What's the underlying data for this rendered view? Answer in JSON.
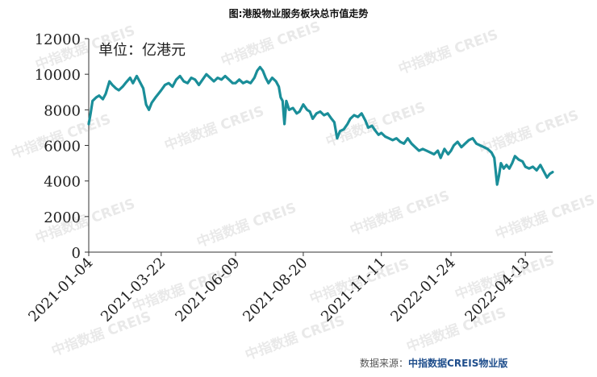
{
  "title": "图:港股物业服务板块总市值走势",
  "unit_label": "单位：亿港元",
  "watermark_text": "中指数据 CREIS",
  "source": {
    "label": "数据来源：",
    "brand": "中指数据CREIS物业版"
  },
  "colors": {
    "line": "#1a8e99",
    "axis": "#333333",
    "watermark": "#e9e9e9"
  },
  "chart_data": {
    "type": "line",
    "title": "图:港股物业服务板块总市值走势",
    "ylabel": "单位：亿港元",
    "xlabel": "",
    "ylim": [
      0,
      12000
    ],
    "yticks": [
      0,
      2000,
      4000,
      6000,
      8000,
      10000,
      12000
    ],
    "xlim": [
      "2021-01-04",
      "2022-05-12"
    ],
    "xticks": [
      "2021-01-04",
      "2021-03-22",
      "2021-06-09",
      "2021-08-20",
      "2021-11-11",
      "2022-01-24",
      "2022-04-13"
    ],
    "grid": false,
    "series": [
      {
        "points": [
          [
            "2021-01-04",
            7200
          ],
          [
            "2021-01-06",
            7800
          ],
          [
            "2021-01-08",
            8500
          ],
          [
            "2021-01-12",
            8700
          ],
          [
            "2021-01-15",
            8800
          ],
          [
            "2021-01-19",
            8600
          ],
          [
            "2021-01-22",
            8900
          ],
          [
            "2021-01-26",
            9600
          ],
          [
            "2021-01-29",
            9400
          ],
          [
            "2021-02-02",
            9200
          ],
          [
            "2021-02-05",
            9100
          ],
          [
            "2021-02-09",
            9300
          ],
          [
            "2021-02-12",
            9500
          ],
          [
            "2021-02-17",
            9800
          ],
          [
            "2021-02-20",
            9500
          ],
          [
            "2021-02-24",
            9900
          ],
          [
            "2021-02-27",
            9600
          ],
          [
            "2021-03-03",
            9200
          ],
          [
            "2021-03-06",
            8300
          ],
          [
            "2021-03-09",
            8000
          ],
          [
            "2021-03-12",
            8400
          ],
          [
            "2021-03-16",
            8700
          ],
          [
            "2021-03-19",
            8900
          ],
          [
            "2021-03-22",
            9100
          ],
          [
            "2021-03-26",
            9400
          ],
          [
            "2021-03-30",
            9500
          ],
          [
            "2021-04-03",
            9300
          ],
          [
            "2021-04-07",
            9700
          ],
          [
            "2021-04-11",
            9900
          ],
          [
            "2021-04-15",
            9600
          ],
          [
            "2021-04-19",
            9500
          ],
          [
            "2021-04-23",
            9800
          ],
          [
            "2021-04-27",
            9700
          ],
          [
            "2021-05-01",
            9400
          ],
          [
            "2021-05-05",
            9700
          ],
          [
            "2021-05-09",
            10000
          ],
          [
            "2021-05-13",
            9800
          ],
          [
            "2021-05-17",
            9600
          ],
          [
            "2021-05-21",
            9800
          ],
          [
            "2021-05-25",
            9700
          ],
          [
            "2021-05-29",
            9900
          ],
          [
            "2021-06-02",
            9700
          ],
          [
            "2021-06-06",
            9500
          ],
          [
            "2021-06-09",
            9500
          ],
          [
            "2021-06-13",
            9700
          ],
          [
            "2021-06-17",
            9500
          ],
          [
            "2021-06-21",
            9600
          ],
          [
            "2021-06-25",
            9500
          ],
          [
            "2021-06-29",
            9800
          ],
          [
            "2021-07-02",
            10200
          ],
          [
            "2021-07-05",
            10400
          ],
          [
            "2021-07-08",
            10200
          ],
          [
            "2021-07-11",
            9800
          ],
          [
            "2021-07-14",
            9500
          ],
          [
            "2021-07-18",
            9800
          ],
          [
            "2021-07-22",
            9600
          ],
          [
            "2021-07-25",
            9300
          ],
          [
            "2021-07-27",
            8700
          ],
          [
            "2021-07-29",
            8500
          ],
          [
            "2021-07-31",
            7200
          ],
          [
            "2021-08-02",
            8500
          ],
          [
            "2021-08-05",
            8000
          ],
          [
            "2021-08-09",
            8100
          ],
          [
            "2021-08-13",
            7800
          ],
          [
            "2021-08-16",
            7900
          ],
          [
            "2021-08-20",
            8300
          ],
          [
            "2021-08-24",
            8000
          ],
          [
            "2021-08-27",
            7900
          ],
          [
            "2021-08-30",
            7500
          ],
          [
            "2021-09-03",
            7800
          ],
          [
            "2021-09-07",
            7900
          ],
          [
            "2021-09-11",
            7700
          ],
          [
            "2021-09-15",
            7800
          ],
          [
            "2021-09-19",
            7500
          ],
          [
            "2021-09-22",
            7300
          ],
          [
            "2021-09-25",
            6400
          ],
          [
            "2021-09-28",
            6800
          ],
          [
            "2021-10-02",
            6900
          ],
          [
            "2021-10-06",
            7200
          ],
          [
            "2021-10-09",
            7500
          ],
          [
            "2021-10-13",
            7700
          ],
          [
            "2021-10-17",
            7600
          ],
          [
            "2021-10-21",
            7800
          ],
          [
            "2021-10-25",
            7400
          ],
          [
            "2021-10-28",
            7000
          ],
          [
            "2021-11-01",
            7100
          ],
          [
            "2021-11-05",
            6800
          ],
          [
            "2021-11-08",
            6600
          ],
          [
            "2021-11-11",
            6700
          ],
          [
            "2021-11-15",
            6500
          ],
          [
            "2021-11-19",
            6400
          ],
          [
            "2021-11-23",
            6300
          ],
          [
            "2021-11-27",
            6400
          ],
          [
            "2021-12-01",
            6200
          ],
          [
            "2021-12-05",
            6100
          ],
          [
            "2021-12-09",
            6400
          ],
          [
            "2021-12-13",
            6100
          ],
          [
            "2021-12-17",
            5900
          ],
          [
            "2021-12-21",
            5700
          ],
          [
            "2021-12-25",
            5800
          ],
          [
            "2021-12-29",
            5700
          ],
          [
            "2022-01-02",
            5600
          ],
          [
            "2022-01-06",
            5500
          ],
          [
            "2022-01-10",
            5700
          ],
          [
            "2022-01-13",
            5300
          ],
          [
            "2022-01-17",
            5800
          ],
          [
            "2022-01-21",
            5500
          ],
          [
            "2022-01-24",
            5700
          ],
          [
            "2022-01-27",
            6000
          ],
          [
            "2022-01-31",
            6200
          ],
          [
            "2022-02-04",
            5900
          ],
          [
            "2022-02-08",
            6100
          ],
          [
            "2022-02-12",
            6300
          ],
          [
            "2022-02-16",
            6400
          ],
          [
            "2022-02-20",
            6100
          ],
          [
            "2022-02-24",
            6000
          ],
          [
            "2022-02-28",
            5900
          ],
          [
            "2022-03-04",
            5800
          ],
          [
            "2022-03-08",
            5600
          ],
          [
            "2022-03-11",
            5300
          ],
          [
            "2022-03-14",
            3800
          ],
          [
            "2022-03-16",
            4300
          ],
          [
            "2022-03-18",
            5000
          ],
          [
            "2022-03-21",
            4700
          ],
          [
            "2022-03-24",
            4900
          ],
          [
            "2022-03-27",
            4700
          ],
          [
            "2022-03-30",
            5000
          ],
          [
            "2022-04-02",
            5400
          ],
          [
            "2022-04-06",
            5200
          ],
          [
            "2022-04-10",
            5100
          ],
          [
            "2022-04-13",
            4800
          ],
          [
            "2022-04-17",
            4700
          ],
          [
            "2022-04-21",
            4800
          ],
          [
            "2022-04-25",
            4600
          ],
          [
            "2022-04-29",
            4900
          ],
          [
            "2022-05-03",
            4500
          ],
          [
            "2022-05-06",
            4200
          ],
          [
            "2022-05-09",
            4400
          ],
          [
            "2022-05-12",
            4500
          ]
        ]
      }
    ]
  }
}
